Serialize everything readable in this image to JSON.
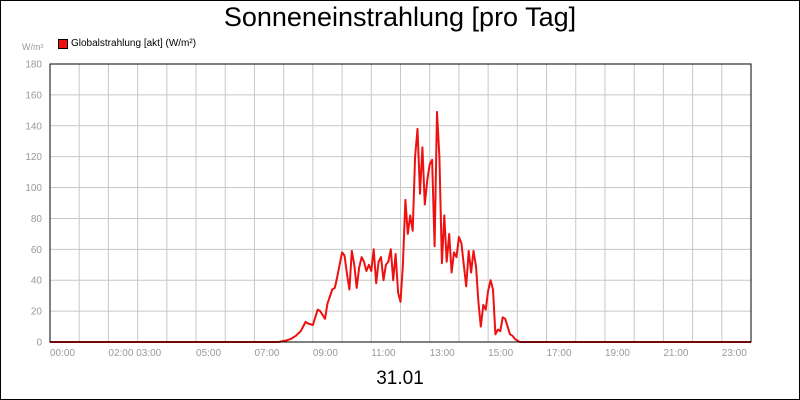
{
  "chart_data": {
    "type": "line",
    "title": "Sonneneinstrahlung [pro Tag]",
    "ylabel": "W/m²",
    "xlabel": "31.01",
    "ylim": [
      0,
      180
    ],
    "y_ticks": [
      0,
      20,
      40,
      60,
      80,
      100,
      120,
      140,
      160,
      180
    ],
    "x_range_hours": [
      0,
      24
    ],
    "x_tick_labels": [
      "00:00",
      "02:00 03:00",
      "05:00",
      "07:00",
      "09:00",
      "11:00",
      "13:00",
      "15:00",
      "17:00",
      "19:00",
      "21:00",
      "23:00"
    ],
    "grid": true,
    "legend_position": "top-left",
    "series": [
      {
        "name": "Globalstrahlung [akt] (W/m²)",
        "color": "#ee1111",
        "x": [
          "00:00",
          "07:00",
          "07:50",
          "08:05",
          "08:15",
          "08:25",
          "08:35",
          "08:40",
          "08:45",
          "08:50",
          "09:00",
          "09:10",
          "09:15",
          "09:25",
          "09:30",
          "09:40",
          "09:45",
          "09:50",
          "09:55",
          "10:00",
          "10:05",
          "10:10",
          "10:15",
          "10:20",
          "10:25",
          "10:30",
          "10:35",
          "10:40",
          "10:45",
          "10:50",
          "10:55",
          "11:00",
          "11:05",
          "11:10",
          "11:15",
          "11:20",
          "11:25",
          "11:30",
          "11:35",
          "11:40",
          "11:45",
          "11:50",
          "11:55",
          "12:00",
          "12:05",
          "12:10",
          "12:15",
          "12:20",
          "12:25",
          "12:30",
          "12:35",
          "12:40",
          "12:45",
          "12:50",
          "12:55",
          "13:00",
          "13:05",
          "13:10",
          "13:15",
          "13:20",
          "13:25",
          "13:30",
          "13:35",
          "13:40",
          "13:45",
          "13:50",
          "13:55",
          "14:00",
          "14:05",
          "14:10",
          "14:15",
          "14:20",
          "14:25",
          "14:30",
          "14:35",
          "14:40",
          "14:45",
          "14:50",
          "14:55",
          "15:00",
          "15:05",
          "15:10",
          "15:15",
          "15:20",
          "15:25",
          "15:30",
          "15:35",
          "15:40",
          "15:45",
          "15:50",
          "15:55",
          "16:00",
          "16:05",
          "16:10",
          "16:15",
          "16:20",
          "16:25",
          "16:30",
          "16:35",
          "16:40",
          "16:45",
          "16:50",
          "16:55",
          "17:00",
          "17:05",
          "17:10",
          "17:15",
          "17:25",
          "17:35",
          "17:45",
          "18:00",
          "24:00"
        ],
        "values": [
          0,
          0,
          0,
          1,
          2,
          4,
          7,
          10,
          13,
          12,
          11,
          21,
          20,
          15,
          25,
          34,
          35,
          42,
          50,
          58,
          56,
          44,
          34,
          59,
          50,
          35,
          48,
          55,
          52,
          46,
          50,
          46,
          60,
          38,
          52,
          55,
          40,
          50,
          52,
          60,
          40,
          57,
          32,
          26,
          50,
          92,
          70,
          82,
          72,
          120,
          138,
          96,
          126,
          89,
          105,
          115,
          118,
          62,
          149,
          120,
          51,
          82,
          52,
          70,
          45,
          58,
          55,
          68,
          64,
          50,
          36,
          59,
          45,
          59,
          49,
          26,
          10,
          24,
          21,
          33,
          40,
          34,
          5,
          8,
          7,
          16,
          15,
          10,
          5,
          4,
          2,
          1,
          0,
          0,
          0,
          0,
          0,
          0,
          0,
          0,
          0,
          0,
          0,
          0,
          0,
          0,
          0,
          0,
          0,
          0,
          0,
          0
        ]
      }
    ]
  }
}
